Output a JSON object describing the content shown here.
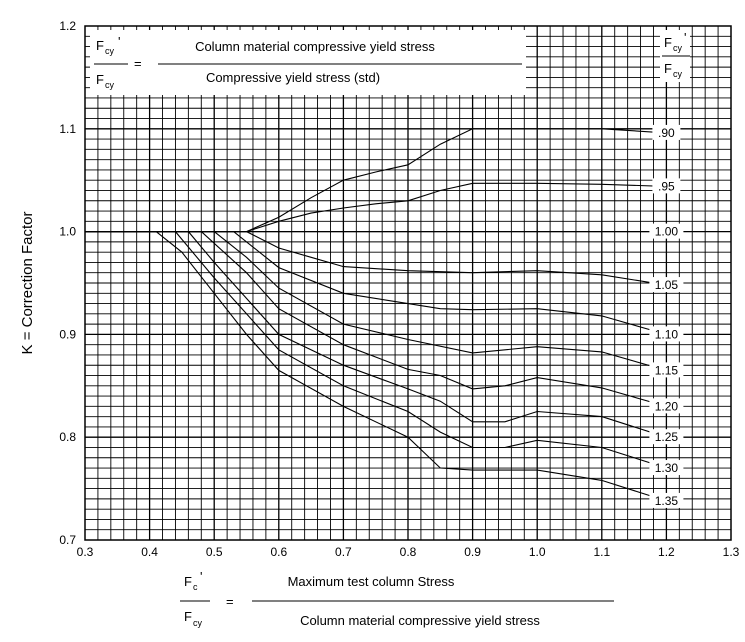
{
  "chart_data": {
    "type": "line",
    "ylabel": "K = Correction Factor",
    "xlim": [
      0.3,
      1.3
    ],
    "ylim": [
      0.7,
      1.2
    ],
    "grid": true,
    "xticks": [
      "0.3",
      "0.4",
      "0.5",
      "0.6",
      "0.7",
      "0.8",
      "0.9",
      "1.0",
      "1.1",
      "1.2",
      "1.3"
    ],
    "yticks": [
      "0.7",
      "0.8",
      "0.9",
      "1.0",
      "1.1",
      "1.2"
    ],
    "top_formula": {
      "lhs_num_base": "F",
      "lhs_num_sub": "cy",
      "lhs_num_prime": "'",
      "lhs_den_base": "F",
      "lhs_den_sub": "cy",
      "equals": "=",
      "numerator": "Column material compressive yield stress",
      "denominator": "Compressive yield stress (std)"
    },
    "legend_header": {
      "num_base": "F",
      "num_sub": "cy",
      "num_prime": "'",
      "den_base": "F",
      "den_sub": "cy"
    },
    "bottom_formula": {
      "num_base": "F",
      "num_sub": "c",
      "num_prime": "'",
      "den_base": "F",
      "den_sub": "cy",
      "equals": "=",
      "numerator": "Maximum test column Stress",
      "denominator": "Column material compressive yield stress"
    },
    "series": [
      {
        "name": ".90",
        "points": [
          [
            0.3,
            1.0
          ],
          [
            0.55,
            1.0
          ],
          [
            0.6,
            1.014
          ],
          [
            0.65,
            1.033
          ],
          [
            0.7,
            1.05
          ],
          [
            0.75,
            1.058
          ],
          [
            0.8,
            1.065
          ],
          [
            0.85,
            1.085
          ],
          [
            0.9,
            1.1
          ],
          [
            1.0,
            1.1
          ],
          [
            1.05,
            1.1
          ],
          [
            1.1,
            1.1
          ],
          [
            1.2,
            1.096
          ]
        ]
      },
      {
        "name": ".95",
        "points": [
          [
            0.3,
            1.0
          ],
          [
            0.55,
            1.0
          ],
          [
            0.6,
            1.01
          ],
          [
            0.65,
            1.018
          ],
          [
            0.7,
            1.023
          ],
          [
            0.75,
            1.027
          ],
          [
            0.8,
            1.03
          ],
          [
            0.85,
            1.04
          ],
          [
            0.9,
            1.047
          ],
          [
            1.0,
            1.047
          ],
          [
            1.1,
            1.046
          ],
          [
            1.2,
            1.044
          ]
        ]
      },
      {
        "name": "1.00",
        "points": [
          [
            0.3,
            1.0
          ],
          [
            1.2,
            1.0
          ]
        ]
      },
      {
        "name": "1.05",
        "points": [
          [
            0.3,
            1.0
          ],
          [
            0.55,
            1.0
          ],
          [
            0.6,
            0.984
          ],
          [
            0.65,
            0.975
          ],
          [
            0.7,
            0.966
          ],
          [
            0.8,
            0.962
          ],
          [
            0.9,
            0.96
          ],
          [
            1.0,
            0.962
          ],
          [
            1.1,
            0.958
          ],
          [
            1.2,
            0.948
          ]
        ]
      },
      {
        "name": "1.10",
        "points": [
          [
            0.3,
            1.0
          ],
          [
            0.53,
            1.0
          ],
          [
            0.6,
            0.965
          ],
          [
            0.7,
            0.94
          ],
          [
            0.8,
            0.93
          ],
          [
            0.85,
            0.925
          ],
          [
            0.9,
            0.924
          ],
          [
            1.0,
            0.925
          ],
          [
            1.1,
            0.918
          ],
          [
            1.2,
            0.9
          ]
        ]
      },
      {
        "name": "1.15",
        "points": [
          [
            0.3,
            1.0
          ],
          [
            0.5,
            1.0
          ],
          [
            0.55,
            0.975
          ],
          [
            0.6,
            0.945
          ],
          [
            0.7,
            0.91
          ],
          [
            0.8,
            0.895
          ],
          [
            0.9,
            0.882
          ],
          [
            1.0,
            0.888
          ],
          [
            1.1,
            0.883
          ],
          [
            1.2,
            0.865
          ]
        ]
      },
      {
        "name": "1.20",
        "points": [
          [
            0.3,
            1.0
          ],
          [
            0.48,
            1.0
          ],
          [
            0.55,
            0.96
          ],
          [
            0.6,
            0.925
          ],
          [
            0.7,
            0.89
          ],
          [
            0.8,
            0.866
          ],
          [
            0.85,
            0.86
          ],
          [
            0.9,
            0.847
          ],
          [
            0.95,
            0.85
          ],
          [
            1.0,
            0.858
          ],
          [
            1.1,
            0.848
          ],
          [
            1.2,
            0.83
          ]
        ]
      },
      {
        "name": "1.25",
        "points": [
          [
            0.3,
            1.0
          ],
          [
            0.46,
            1.0
          ],
          [
            0.5,
            0.97
          ],
          [
            0.55,
            0.935
          ],
          [
            0.6,
            0.9
          ],
          [
            0.7,
            0.87
          ],
          [
            0.8,
            0.847
          ],
          [
            0.85,
            0.835
          ],
          [
            0.9,
            0.815
          ],
          [
            0.95,
            0.815
          ],
          [
            1.0,
            0.825
          ],
          [
            1.1,
            0.82
          ],
          [
            1.2,
            0.8
          ]
        ]
      },
      {
        "name": "1.30",
        "points": [
          [
            0.3,
            1.0
          ],
          [
            0.44,
            1.0
          ],
          [
            0.5,
            0.955
          ],
          [
            0.55,
            0.92
          ],
          [
            0.6,
            0.885
          ],
          [
            0.7,
            0.85
          ],
          [
            0.8,
            0.825
          ],
          [
            0.85,
            0.805
          ],
          [
            0.9,
            0.79
          ],
          [
            0.95,
            0.79
          ],
          [
            1.0,
            0.797
          ],
          [
            1.1,
            0.79
          ],
          [
            1.2,
            0.77
          ]
        ]
      },
      {
        "name": "1.35",
        "points": [
          [
            0.3,
            1.0
          ],
          [
            0.41,
            1.0
          ],
          [
            0.45,
            0.98
          ],
          [
            0.5,
            0.94
          ],
          [
            0.55,
            0.9
          ],
          [
            0.6,
            0.865
          ],
          [
            0.7,
            0.83
          ],
          [
            0.8,
            0.8
          ],
          [
            0.85,
            0.77
          ],
          [
            0.9,
            0.768
          ],
          [
            1.0,
            0.768
          ],
          [
            1.1,
            0.758
          ],
          [
            1.2,
            0.738
          ]
        ]
      }
    ]
  }
}
